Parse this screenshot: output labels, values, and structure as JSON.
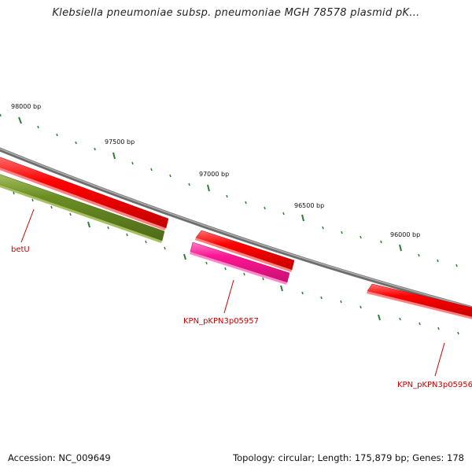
{
  "title": "Klebsiella pneumoniae subsp. pneumoniae MGH 78578 plasmid pK...",
  "ruler": {
    "labels": [
      "98000 bp",
      "97500 bp",
      "97000 bp",
      "96500 bp",
      "96000 bp"
    ]
  },
  "genes": [
    {
      "id": "betU",
      "label": "betU",
      "color": "#6b8e23",
      "strand": "reverse"
    },
    {
      "id": "KPN_pKPN3p05957",
      "label": "KPN_pKPN3p05957",
      "color": "#ff1493",
      "strand": "reverse"
    },
    {
      "id": "KPN_pKPN3p05956",
      "label": "KPN_pKPN3p05956",
      "color": "#ff0000",
      "strand": "forward"
    }
  ],
  "colors": {
    "backbone": "#808080",
    "forward_feature": "#ff0000",
    "reverse_feature_a": "#6b8e23",
    "reverse_feature_b": "#ff1493",
    "tick": "#2e7d32",
    "gene_label": "#cc0000"
  },
  "footer": {
    "accession": "Accession: NC_009649",
    "summary": "Topology: circular; Length: 175,879 bp; Genes: 178"
  }
}
